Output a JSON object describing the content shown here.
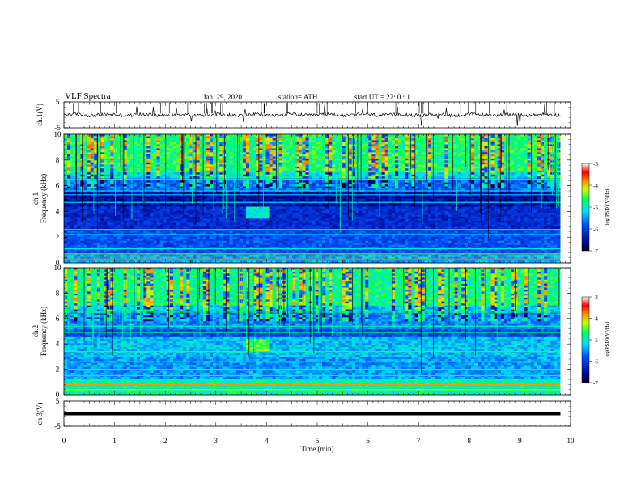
{
  "header": {
    "title": "VLF  Spectra",
    "date": "Jan. 29, 2020",
    "station": "station= ATH",
    "start": "start  UT  =    22: 0   : 1"
  },
  "chart_data": [
    {
      "type": "line",
      "ylabel": "ch.1(V)",
      "ylim": [
        -5,
        5
      ],
      "yticks": [
        "5",
        "-5"
      ],
      "xlim": [
        0,
        10
      ],
      "approx_level": 0,
      "color": "#000000"
    },
    {
      "type": "heatmap",
      "ylabel": "ch.1\nFrequency  (kHz)",
      "ylim": [
        0,
        10
      ],
      "yticks": [
        "10",
        "8",
        "6",
        "4",
        "2",
        "0"
      ],
      "xlim": [
        0,
        10
      ],
      "data_end_min": 9.8,
      "colorbar": {
        "label": "log(PSD)(V²/Hz)",
        "range": [
          -7,
          -3
        ],
        "ticks": [
          "-3",
          "-4",
          "-5",
          "-6",
          "-7"
        ]
      }
    },
    {
      "type": "heatmap",
      "ylabel": "ch.2\nFrequency  (kHz)",
      "ylim": [
        0,
        10
      ],
      "yticks": [
        "10",
        "8",
        "6",
        "4",
        "2",
        "0"
      ],
      "xlim": [
        0,
        10
      ],
      "data_end_min": 9.8,
      "colorbar": {
        "label": "log(PSD)(V²/Hz)",
        "range": [
          -7,
          -3
        ],
        "ticks": [
          "-3",
          "-4",
          "-5",
          "-6",
          "-7"
        ]
      }
    },
    {
      "type": "line",
      "ylabel": "ch.3(V)",
      "ylim": [
        -5,
        5
      ],
      "yticks": [
        "5",
        "-5"
      ],
      "xlim": [
        0,
        10
      ],
      "approx_level": 0,
      "color": "#000000",
      "xlabel": "Time  (min)",
      "xticks": [
        "0",
        "1",
        "2",
        "3",
        "4",
        "5",
        "6",
        "7",
        "8",
        "9",
        "10"
      ]
    }
  ]
}
